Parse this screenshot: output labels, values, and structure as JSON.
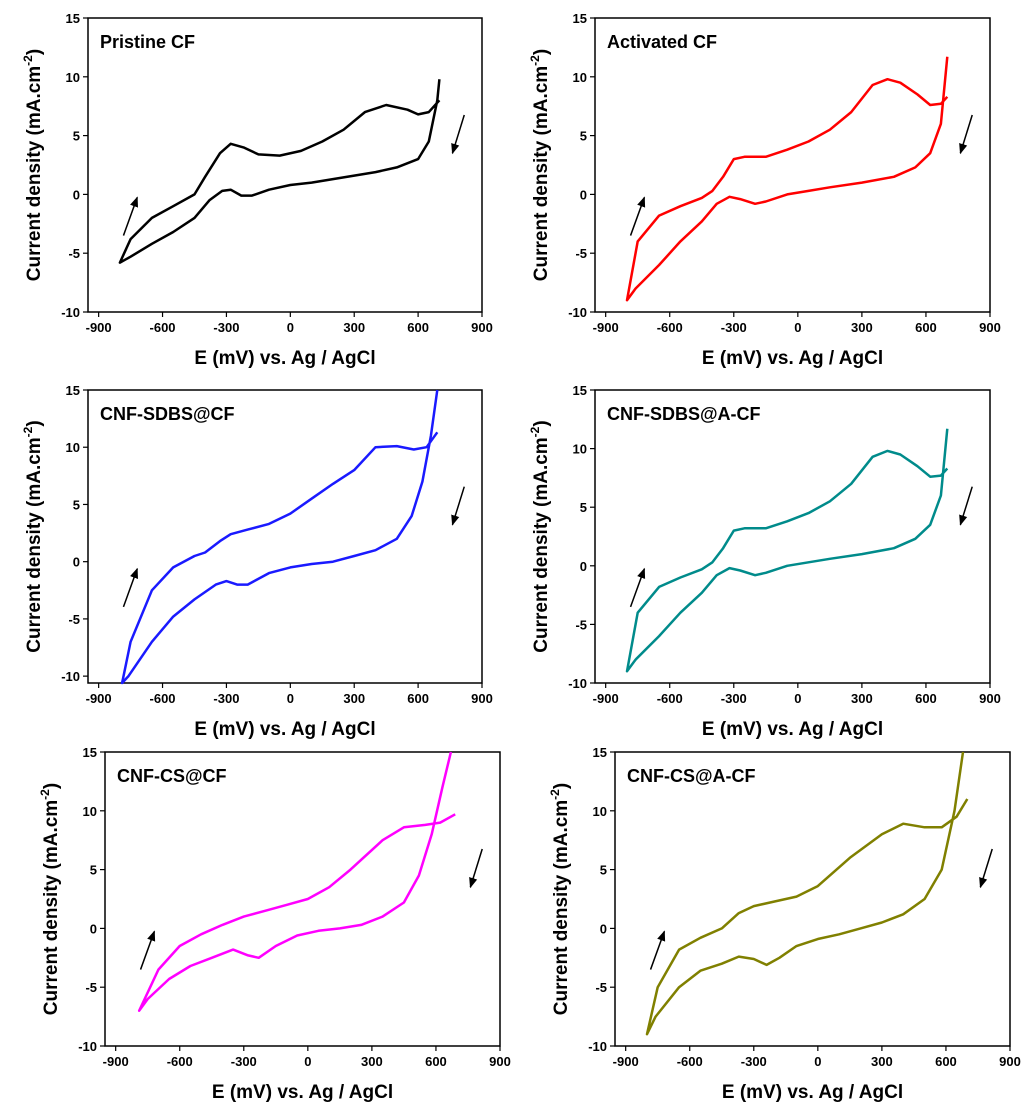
{
  "chart_data": [
    {
      "type": "line",
      "xlabel": "E (mV) vs. Ag / AgCl",
      "ylabel": "Current density (mA.cm",
      "ylabel_superscript": "-2",
      "ylabel_suffix": ")",
      "xlim": [
        -950,
        900
      ],
      "ylim": [
        -10,
        15
      ],
      "xticks": [
        -900,
        -600,
        -300,
        0,
        300,
        600,
        900
      ],
      "yticks": [
        -10,
        -5,
        0,
        5,
        10,
        15
      ],
      "x": [
        700,
        650,
        600,
        550,
        450,
        350,
        250,
        150,
        50,
        -50,
        -150,
        -220,
        -280,
        -330,
        -400,
        -450,
        -550,
        -650,
        -750,
        -800,
        -750,
        -650,
        -550,
        -450,
        -380,
        -320,
        -280,
        -230,
        -180,
        -100,
        0,
        100,
        200,
        300,
        400,
        500,
        600,
        650,
        690,
        700
      ],
      "series": [
        {
          "name": "Pristine CF",
          "color": "#000000",
          "values": [
            8,
            7,
            6.8,
            7.2,
            7.6,
            7,
            5.5,
            4.5,
            3.7,
            3.3,
            3.4,
            4,
            4.3,
            3.5,
            1.5,
            0,
            -1,
            -2,
            -3.8,
            -5.8,
            -5.3,
            -4.2,
            -3.2,
            -2,
            -0.5,
            0.3,
            0.4,
            -0.1,
            -0.1,
            0.4,
            0.8,
            1,
            1.3,
            1.6,
            1.9,
            2.3,
            3,
            4.5,
            8,
            9.8
          ]
        }
      ]
    },
    {
      "type": "line",
      "xlabel": "E (mV) vs. Ag / AgCl",
      "ylabel": "Current density (mA.cm",
      "ylabel_superscript": "-2",
      "ylabel_suffix": ")",
      "xlim": [
        -950,
        900
      ],
      "ylim": [
        -10,
        15
      ],
      "xticks": [
        -900,
        -600,
        -300,
        0,
        300,
        600,
        900
      ],
      "yticks": [
        -10,
        -5,
        0,
        5,
        10,
        15
      ],
      "x": [
        700,
        670,
        620,
        560,
        480,
        420,
        350,
        250,
        150,
        50,
        -50,
        -150,
        -250,
        -300,
        -350,
        -400,
        -450,
        -550,
        -650,
        -750,
        -800,
        -760,
        -650,
        -550,
        -450,
        -380,
        -320,
        -270,
        -200,
        -150,
        -50,
        50,
        150,
        300,
        450,
        550,
        620,
        670,
        700
      ],
      "series": [
        {
          "name": "Activated CF",
          "color": "#ff0000",
          "values": [
            8.3,
            7.7,
            7.6,
            8.5,
            9.5,
            9.8,
            9.3,
            7,
            5.5,
            4.5,
            3.8,
            3.2,
            3.2,
            3,
            1.5,
            0.3,
            -0.3,
            -1,
            -1.8,
            -4,
            -9,
            -8,
            -6,
            -4,
            -2.3,
            -0.8,
            -0.2,
            -0.4,
            -0.8,
            -0.6,
            0,
            0.3,
            0.6,
            1,
            1.5,
            2.3,
            3.5,
            6,
            11.7
          ]
        }
      ]
    },
    {
      "type": "line",
      "xlabel": "E (mV) vs. Ag / AgCl",
      "ylabel": "Current density (mA.cm",
      "ylabel_superscript": "-2",
      "ylabel_suffix": ")",
      "xlim": [
        -950,
        900
      ],
      "ylim": [
        -10.6,
        15
      ],
      "xticks": [
        -900,
        -600,
        -300,
        0,
        300,
        600,
        900
      ],
      "yticks": [
        -10,
        -5,
        0,
        5,
        10,
        15
      ],
      "x": [
        690,
        640,
        580,
        500,
        400,
        300,
        200,
        100,
        0,
        -100,
        -200,
        -280,
        -330,
        -400,
        -450,
        -550,
        -650,
        -750,
        -790,
        -760,
        -650,
        -550,
        -450,
        -350,
        -300,
        -250,
        -200,
        -100,
        0,
        100,
        200,
        300,
        400,
        500,
        570,
        620,
        660,
        690
      ],
      "series": [
        {
          "name": "CNF-SDBS@CF",
          "color": "#1a1aff",
          "values": [
            11.3,
            10,
            9.8,
            10.1,
            10,
            8,
            6.8,
            5.5,
            4.2,
            3.3,
            2.8,
            2.4,
            1.8,
            0.8,
            0.5,
            -0.5,
            -2.5,
            -7,
            -10.6,
            -10,
            -7,
            -4.8,
            -3.3,
            -2,
            -1.7,
            -2,
            -2,
            -1,
            -0.5,
            -0.2,
            0,
            0.5,
            1,
            2,
            4,
            7,
            11,
            15
          ]
        }
      ]
    },
    {
      "type": "line",
      "xlabel": "E (mV) vs. Ag / AgCl",
      "ylabel": "Current density (mA.cm",
      "ylabel_superscript": "-2",
      "ylabel_suffix": ")",
      "xlim": [
        -950,
        900
      ],
      "ylim": [
        -10,
        15
      ],
      "xticks": [
        -900,
        -600,
        -300,
        0,
        300,
        600,
        900
      ],
      "yticks": [
        -10,
        -5,
        0,
        5,
        10,
        15
      ],
      "x": [
        700,
        670,
        620,
        560,
        480,
        420,
        350,
        250,
        150,
        50,
        -50,
        -150,
        -250,
        -300,
        -350,
        -400,
        -450,
        -550,
        -650,
        -750,
        -800,
        -760,
        -650,
        -550,
        -450,
        -380,
        -320,
        -270,
        -200,
        -150,
        -50,
        50,
        150,
        300,
        450,
        550,
        620,
        670,
        700
      ],
      "series": [
        {
          "name": "CNF-SDBS@A-CF",
          "color": "#008b8b",
          "values": [
            8.3,
            7.7,
            7.6,
            8.5,
            9.5,
            9.8,
            9.3,
            7,
            5.5,
            4.5,
            3.8,
            3.2,
            3.2,
            3,
            1.5,
            0.3,
            -0.3,
            -1,
            -1.8,
            -4,
            -9,
            -8,
            -6,
            -4,
            -2.3,
            -0.8,
            -0.2,
            -0.4,
            -0.8,
            -0.6,
            0,
            0.3,
            0.6,
            1,
            1.5,
            2.3,
            3.5,
            6,
            11.7
          ]
        }
      ]
    },
    {
      "type": "line",
      "xlabel": "E (mV) vs. Ag / AgCl",
      "ylabel": "Current density (mA.cm",
      "ylabel_superscript": "-2",
      "ylabel_suffix": ")",
      "xlim": [
        -950,
        900
      ],
      "ylim": [
        -10,
        15
      ],
      "xticks": [
        -900,
        -600,
        -300,
        0,
        300,
        600,
        900
      ],
      "yticks": [
        -10,
        -5,
        0,
        5,
        10,
        15
      ],
      "x": [
        690,
        620,
        550,
        450,
        350,
        200,
        100,
        0,
        -100,
        -200,
        -300,
        -400,
        -500,
        -600,
        -700,
        -790,
        -750,
        -650,
        -550,
        -450,
        -350,
        -280,
        -230,
        -150,
        -50,
        50,
        150,
        250,
        350,
        450,
        520,
        580,
        630,
        670
      ],
      "series": [
        {
          "name": "CNF-CS@CF",
          "color": "#ff00ff",
          "values": [
            9.7,
            9,
            8.8,
            8.6,
            7.5,
            5,
            3.5,
            2.5,
            2,
            1.5,
            1,
            0.3,
            -0.5,
            -1.5,
            -3.5,
            -7,
            -6,
            -4.3,
            -3.2,
            -2.5,
            -1.8,
            -2.3,
            -2.5,
            -1.5,
            -0.6,
            -0.2,
            0,
            0.3,
            1,
            2.2,
            4.5,
            8,
            12,
            15
          ]
        }
      ]
    },
    {
      "type": "line",
      "xlabel": "E (mV) vs. Ag / AgCl",
      "ylabel": "Current density (mA.cm",
      "ylabel_superscript": "-2",
      "ylabel_suffix": ")",
      "xlim": [
        -950,
        900
      ],
      "ylim": [
        -10,
        15
      ],
      "xticks": [
        -900,
        -600,
        -300,
        0,
        300,
        600,
        900
      ],
      "yticks": [
        -10,
        -5,
        0,
        5,
        10,
        15
      ],
      "x": [
        700,
        650,
        580,
        500,
        400,
        300,
        150,
        0,
        -100,
        -200,
        -300,
        -370,
        -450,
        -550,
        -650,
        -750,
        -800,
        -760,
        -650,
        -550,
        -450,
        -370,
        -300,
        -240,
        -180,
        -100,
        0,
        100,
        200,
        300,
        400,
        500,
        580,
        640,
        680
      ],
      "series": [
        {
          "name": "CNF-CS@A-CF",
          "color": "#808000",
          "values": [
            11,
            9.5,
            8.6,
            8.6,
            8.9,
            8,
            6,
            3.6,
            2.7,
            2.3,
            1.9,
            1.3,
            0,
            -0.8,
            -1.8,
            -5,
            -9,
            -7.5,
            -5,
            -3.6,
            -3,
            -2.4,
            -2.6,
            -3.1,
            -2.5,
            -1.5,
            -0.9,
            -0.5,
            0,
            0.5,
            1.2,
            2.5,
            5,
            10,
            15
          ]
        }
      ]
    }
  ]
}
